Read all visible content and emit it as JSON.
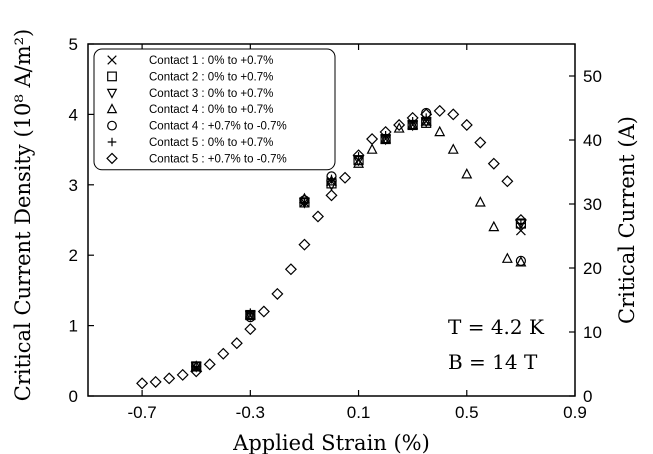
{
  "chart_data": {
    "type": "scatter",
    "xlabel": "Applied Strain (%)",
    "ylabel": "Critical Current Density (10⁸ A/m²)",
    "y2label": "Critical Current (A)",
    "xlim": [
      -0.9,
      0.9
    ],
    "ylim": [
      0,
      5
    ],
    "y2lim": [
      0,
      55
    ],
    "xticks": [
      -0.7,
      -0.3,
      0.1,
      0.5,
      0.9
    ],
    "xtick_labels": [
      "-0.7",
      "-0.3",
      "0.1",
      "0.5",
      "0.9"
    ],
    "yticks": [
      0,
      1,
      2,
      3,
      4,
      5
    ],
    "ytick_labels": [
      "0",
      "1",
      "2",
      "3",
      "4",
      "5"
    ],
    "y2ticks": [
      0,
      10,
      20,
      30,
      40,
      50
    ],
    "y2tick_labels": [
      "0",
      "10",
      "20",
      "30",
      "40",
      "50"
    ],
    "legend_position": "top-left",
    "grid": false,
    "annotations": [
      "T = 4.2 K",
      "B = 14 T"
    ],
    "series": [
      {
        "name": "Contact 1 : 0% to +0.7%",
        "marker": "x",
        "x": [
          -0.5,
          -0.3,
          -0.1,
          0.0,
          0.1,
          0.2,
          0.3,
          0.35,
          0.7
        ],
        "y": [
          0.4,
          1.15,
          2.75,
          3.05,
          3.35,
          3.65,
          3.85,
          3.9,
          2.35
        ]
      },
      {
        "name": "Contact 2 : 0% to +0.7%",
        "marker": "square",
        "x": [
          -0.5,
          -0.3,
          -0.1,
          0.0,
          0.1,
          0.2,
          0.3,
          0.35,
          0.7
        ],
        "y": [
          0.42,
          1.15,
          2.75,
          3.02,
          3.35,
          3.65,
          3.85,
          3.88,
          2.45
        ]
      },
      {
        "name": "Contact 3 : 0% to +0.7%",
        "marker": "triangle-down",
        "x": [
          -0.5,
          -0.3,
          -0.1,
          0.0,
          0.1,
          0.2,
          0.3,
          0.35,
          0.7
        ],
        "y": [
          0.42,
          1.15,
          2.75,
          3.0,
          3.35,
          3.65,
          3.85,
          3.9,
          2.45
        ]
      },
      {
        "name": "Contact 4 : 0% to +0.7%",
        "marker": "triangle-up",
        "x": [
          -0.5,
          -0.3,
          -0.1,
          0.0,
          0.1,
          0.15,
          0.2,
          0.25,
          0.3,
          0.35,
          0.4,
          0.45,
          0.5,
          0.55,
          0.6,
          0.65,
          0.7
        ],
        "y": [
          0.42,
          1.15,
          2.8,
          3.05,
          3.3,
          3.5,
          3.65,
          3.8,
          3.85,
          3.9,
          3.75,
          3.5,
          3.15,
          2.75,
          2.4,
          1.95,
          1.9
        ]
      },
      {
        "name": "Contact 4 : +0.7% to -0.7%",
        "marker": "circle",
        "x": [
          0.7,
          0.35,
          0.0,
          -0.1,
          -0.3,
          -0.5
        ],
        "y": [
          1.92,
          4.02,
          3.12,
          2.78,
          1.12,
          0.42
        ]
      },
      {
        "name": "Contact 5 : 0% to +0.7%",
        "marker": "plus",
        "x": [
          -0.5,
          -0.3,
          -0.1,
          0.0,
          0.1,
          0.2,
          0.3,
          0.35,
          0.7
        ],
        "y": [
          0.42,
          1.18,
          2.75,
          3.08,
          3.4,
          3.7,
          3.9,
          3.95,
          2.45
        ]
      },
      {
        "name": "Contact 5 : +0.7% to -0.7%",
        "marker": "diamond",
        "x": [
          0.7,
          0.65,
          0.6,
          0.55,
          0.5,
          0.45,
          0.4,
          0.35,
          0.3,
          0.25,
          0.2,
          0.15,
          0.1,
          0.05,
          0.0,
          -0.05,
          -0.1,
          -0.15,
          -0.2,
          -0.25,
          -0.3,
          -0.35,
          -0.4,
          -0.45,
          -0.5,
          -0.55,
          -0.6,
          -0.65,
          -0.7
        ],
        "y": [
          2.5,
          3.05,
          3.3,
          3.6,
          3.85,
          4.0,
          4.05,
          4.0,
          3.95,
          3.85,
          3.75,
          3.65,
          3.42,
          3.1,
          2.85,
          2.55,
          2.15,
          1.8,
          1.45,
          1.2,
          0.95,
          0.75,
          0.6,
          0.45,
          0.35,
          0.3,
          0.25,
          0.2,
          0.18
        ]
      }
    ]
  }
}
